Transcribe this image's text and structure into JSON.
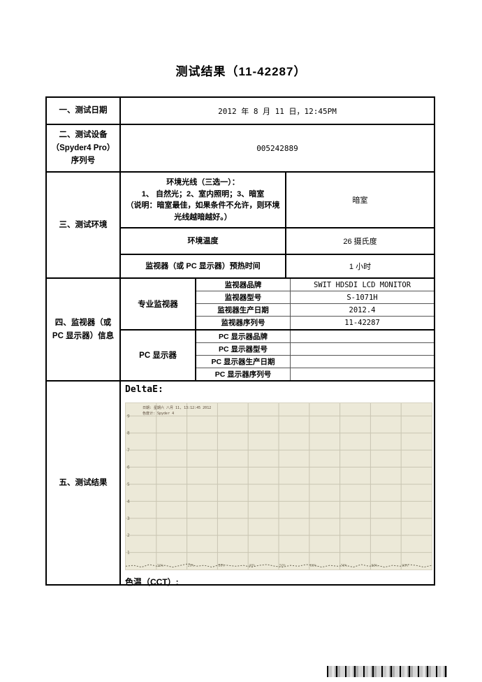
{
  "page": {
    "title": "测试结果（11-42287）"
  },
  "rows": {
    "date": {
      "label": "一、测试日期",
      "value": "2012 年 8 月 11 日，12:45PM"
    },
    "device": {
      "label": "二、测试设备\n（Spyder4 Pro）\n序列号",
      "value": "005242889"
    },
    "environment": {
      "label": "三、测试环境",
      "items": [
        {
          "label": "环境光线（三选一）：\n1、 自然光；2、室内照明；3、暗室\n（说明：暗室最佳，如果条件不允许，则环境光线越暗越好。）",
          "value": "暗室"
        },
        {
          "label": "环境温度",
          "value": "26 摄氏度"
        },
        {
          "label": "监视器（或 PC 显示器）预热时间",
          "value": "1 小时"
        }
      ]
    },
    "monitor": {
      "label": "四、监视器（或\nPC 显示器）信息",
      "group_pro_label": "专业监视器",
      "group_pc_label": "PC 显示器",
      "pro_rows": [
        {
          "label": "监视器品牌",
          "value": "SWIT HDSDI LCD MONITOR"
        },
        {
          "label": "监视器型号",
          "value": "S-1071H"
        },
        {
          "label": "监视器生产日期",
          "value": "2012.4"
        },
        {
          "label": "监视器序列号",
          "value": "11-42287"
        }
      ],
      "pc_rows": [
        {
          "label": "PC 显示器品牌",
          "value": ""
        },
        {
          "label": "PC 显示器型号",
          "value": ""
        },
        {
          "label": "PC 显示器生产日期",
          "value": ""
        },
        {
          "label": "PC 显示器序列号",
          "value": ""
        }
      ]
    },
    "results": {
      "label": "五、测试结果",
      "deltae_label": "DeltaE:",
      "cct_label": "色温（CCT）:"
    }
  },
  "chart_data": {
    "type": "line",
    "title": "",
    "header_lines": [
      "日期: 星期六 八月 11, 13:12:45 2012",
      "色度计: Spyder 4"
    ],
    "xlabel": "",
    "ylabel": "",
    "x_tick_labels": [
      "10%",
      "20%",
      "30%",
      "40%",
      "50%",
      "60%",
      "70%",
      "80%",
      "90%"
    ],
    "y_ticks": [
      1,
      2,
      3,
      4,
      5,
      6,
      7,
      8,
      9
    ],
    "ylim": [
      0,
      9.75
    ],
    "grid": true,
    "background": "#ece9d8",
    "grid_color": "#c9c5b2",
    "series": [
      {
        "name": "DeltaE",
        "values": [
          0.15,
          0.2,
          0.1,
          0.25,
          0.15,
          0.2,
          0.1,
          0.2,
          0.3,
          0.15,
          0.2,
          0.1,
          0.25,
          0.2,
          0.15,
          0.2,
          0.1,
          0.2,
          0.25,
          0.15,
          0.1,
          0.2,
          0.15,
          0.25,
          0.2,
          0.1,
          0.2,
          0.15,
          0.2,
          0.1,
          0.25,
          0.15,
          0.2,
          0.1,
          0.2,
          0.15,
          0.25,
          0.2,
          0.1,
          0.2
        ]
      }
    ]
  }
}
